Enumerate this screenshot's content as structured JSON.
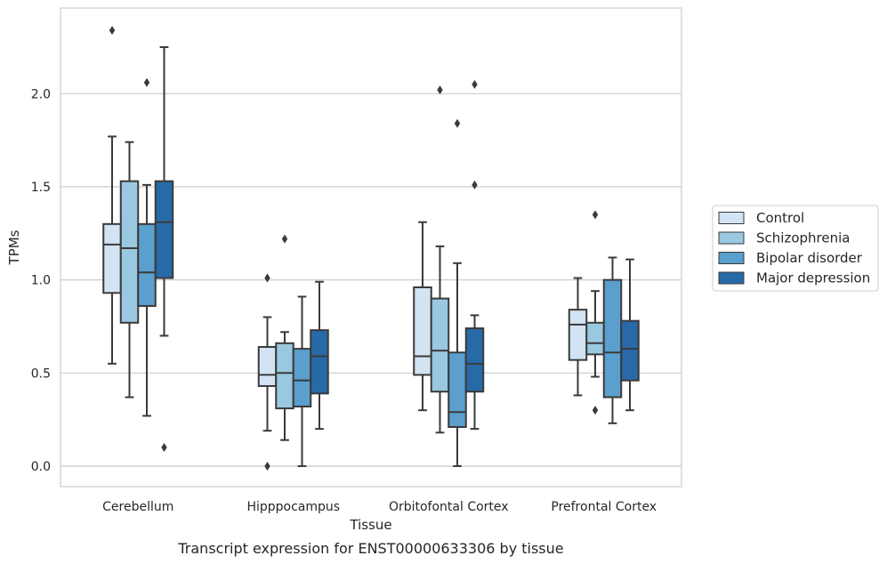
{
  "caption": "Transcript expression for ENST00000633306 by tissue",
  "chart_data": {
    "type": "box",
    "xlabel": "Tissue",
    "ylabel": "TPMs",
    "ylim": [
      -0.11,
      2.46
    ],
    "yticks": [
      0.0,
      0.5,
      1.0,
      1.5,
      2.0
    ],
    "ytick_labels": [
      "0.0",
      "0.5",
      "1.0",
      "1.5",
      "2.0"
    ],
    "grid": "horizontal",
    "legend_position": "right",
    "categories": [
      "Cerebellum",
      "Hipppocampus",
      "Orbitofontal Cortex",
      "Prefrontal Cortex"
    ],
    "series": [
      {
        "name": "Control",
        "color": "#d2e3f3",
        "boxes": [
          {
            "whislo": 0.55,
            "q1": 0.93,
            "med": 1.19,
            "q3": 1.3,
            "whishi": 1.77,
            "fliers": [
              2.34
            ]
          },
          {
            "whislo": 0.19,
            "q1": 0.43,
            "med": 0.49,
            "q3": 0.64,
            "whishi": 0.8,
            "fliers": [
              1.01,
              0.0
            ]
          },
          {
            "whislo": 0.3,
            "q1": 0.49,
            "med": 0.59,
            "q3": 0.96,
            "whishi": 1.31,
            "fliers": []
          },
          {
            "whislo": 0.38,
            "q1": 0.57,
            "med": 0.76,
            "q3": 0.84,
            "whishi": 1.01,
            "fliers": []
          }
        ]
      },
      {
        "name": "Schizophrenia",
        "color": "#9ac8e0",
        "boxes": [
          {
            "whislo": 0.37,
            "q1": 0.77,
            "med": 1.17,
            "q3": 1.53,
            "whishi": 1.74,
            "fliers": []
          },
          {
            "whislo": 0.14,
            "q1": 0.31,
            "med": 0.5,
            "q3": 0.66,
            "whishi": 0.72,
            "fliers": [
              1.22
            ]
          },
          {
            "whislo": 0.18,
            "q1": 0.4,
            "med": 0.62,
            "q3": 0.9,
            "whishi": 1.18,
            "fliers": [
              2.02
            ]
          },
          {
            "whislo": 0.48,
            "q1": 0.6,
            "med": 0.66,
            "q3": 0.77,
            "whishi": 0.94,
            "fliers": [
              1.35,
              0.3
            ]
          }
        ]
      },
      {
        "name": "Bipolar disorder",
        "color": "#5a9fcd",
        "boxes": [
          {
            "whislo": 0.27,
            "q1": 0.86,
            "med": 1.04,
            "q3": 1.3,
            "whishi": 1.51,
            "fliers": [
              2.06
            ]
          },
          {
            "whislo": 0.0,
            "q1": 0.32,
            "med": 0.46,
            "q3": 0.63,
            "whishi": 0.91,
            "fliers": []
          },
          {
            "whislo": 0.0,
            "q1": 0.21,
            "med": 0.29,
            "q3": 0.61,
            "whishi": 1.09,
            "fliers": [
              1.84
            ]
          },
          {
            "whislo": 0.23,
            "q1": 0.37,
            "med": 0.61,
            "q3": 1.0,
            "whishi": 1.12,
            "fliers": []
          }
        ]
      },
      {
        "name": "Major depression",
        "color": "#2869a8",
        "boxes": [
          {
            "whislo": 0.7,
            "q1": 1.01,
            "med": 1.31,
            "q3": 1.53,
            "whishi": 2.25,
            "fliers": [
              0.1
            ]
          },
          {
            "whislo": 0.2,
            "q1": 0.39,
            "med": 0.59,
            "q3": 0.73,
            "whishi": 0.99,
            "fliers": []
          },
          {
            "whislo": 0.2,
            "q1": 0.4,
            "med": 0.55,
            "q3": 0.74,
            "whishi": 0.81,
            "fliers": [
              2.05,
              1.51
            ]
          },
          {
            "whislo": 0.3,
            "q1": 0.46,
            "med": 0.63,
            "q3": 0.78,
            "whishi": 1.11,
            "fliers": []
          }
        ]
      }
    ]
  }
}
